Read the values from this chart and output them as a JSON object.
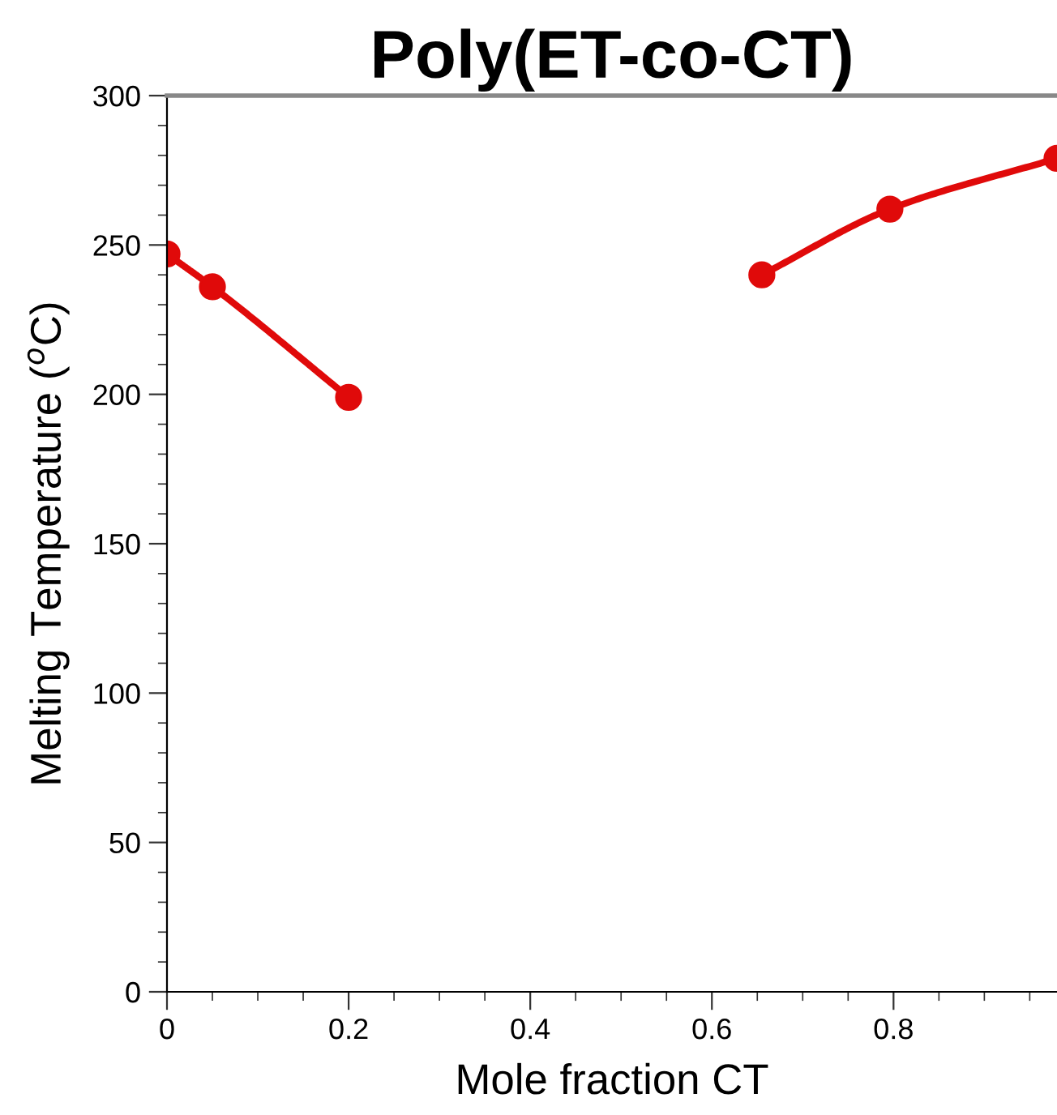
{
  "chart_data": {
    "type": "line",
    "title": "Poly(ET-co-CT)",
    "xlabel": "Mole fraction CT",
    "ylabel": "Melting Temperature ($^{o}$C)",
    "series": [
      {
        "color": "#e00a0a",
        "x": [
          0,
          0.05,
          0.2
        ],
        "values": [
          247,
          236,
          199
        ]
      },
      {
        "color": "#e00a0a",
        "x": [
          0.655,
          0.796,
          0.98
        ],
        "values": [
          240,
          262,
          279
        ]
      }
    ],
    "xlim": [
      0,
      0.98
    ],
    "ylim": [
      0,
      300
    ],
    "xticks": [
      0,
      0.2,
      0.4,
      0.6,
      0.8
    ],
    "yticks": [
      0,
      50,
      100,
      150,
      200,
      250,
      300
    ],
    "grid": false,
    "marker": "circle",
    "line_style": "solid"
  }
}
